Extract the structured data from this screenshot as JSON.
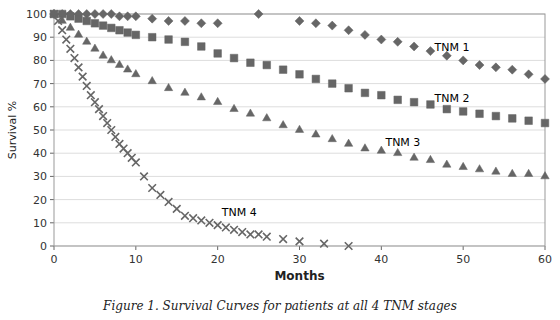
{
  "chart_data": {
    "type": "scatter",
    "title": "Figure 1. Survival Curves for patients at all 4 TNM stages",
    "xlabel": "Months",
    "ylabel": "Survival %",
    "xlim": [
      0,
      60
    ],
    "ylim": [
      0,
      100
    ],
    "xticks": [
      0,
      10,
      20,
      30,
      40,
      50,
      60
    ],
    "yticks": [
      0,
      10,
      20,
      30,
      40,
      50,
      60,
      70,
      80,
      90,
      100
    ],
    "grid": "y",
    "series": [
      {
        "marker": "diamond",
        "color": "#666666",
        "x": [
          0,
          1,
          2,
          3,
          4,
          5,
          6,
          7,
          8,
          9,
          10,
          12,
          14,
          16,
          18,
          20,
          25,
          30,
          32,
          34,
          36,
          38,
          40,
          42,
          44,
          46,
          48,
          50,
          52,
          54,
          56,
          58,
          60
        ],
        "values": [
          100,
          100,
          100,
          100,
          100,
          100,
          100,
          100,
          99,
          99,
          99,
          98,
          97,
          97,
          96,
          96,
          100,
          97,
          96,
          95,
          93,
          91,
          89,
          88,
          86,
          84,
          82,
          80,
          78,
          77,
          76,
          74,
          72
        ]
      },
      {
        "marker": "square",
        "color": "#666666",
        "x": [
          0,
          1,
          2,
          3,
          4,
          5,
          6,
          7,
          8,
          9,
          10,
          12,
          14,
          16,
          18,
          20,
          22,
          24,
          26,
          28,
          30,
          32,
          34,
          36,
          38,
          40,
          42,
          44,
          46,
          48,
          50,
          52,
          54,
          56,
          58,
          60
        ],
        "values": [
          100,
          100,
          99,
          98,
          97,
          96,
          95,
          94,
          93,
          92,
          91,
          90,
          89,
          88,
          86,
          83,
          81,
          79,
          78,
          76,
          74,
          72,
          70,
          68,
          66,
          65,
          63,
          62,
          61,
          59,
          58,
          57,
          56,
          55,
          54,
          53
        ]
      },
      {
        "marker": "triangle",
        "color": "#666666",
        "x": [
          0,
          1,
          2,
          3,
          4,
          5,
          6,
          7,
          8,
          9,
          10,
          12,
          14,
          16,
          18,
          20,
          22,
          24,
          26,
          28,
          30,
          32,
          34,
          36,
          38,
          40,
          42,
          44,
          46,
          48,
          50,
          52,
          54,
          56,
          58,
          60
        ],
        "values": [
          100,
          97,
          94,
          91,
          88,
          85,
          82,
          80,
          78,
          76,
          74,
          71,
          68,
          66,
          64,
          62,
          59,
          57,
          55,
          52,
          50,
          48,
          46,
          44,
          42,
          41,
          40,
          38,
          37,
          35,
          34,
          33,
          32,
          31,
          31,
          30
        ]
      },
      {
        "marker": "x",
        "color": "#666666",
        "x": [
          0,
          0.5,
          1,
          1.5,
          2,
          2.5,
          3,
          3.5,
          4,
          4.5,
          5,
          5.5,
          6,
          6.5,
          7,
          7.5,
          8,
          8.5,
          9,
          9.5,
          10,
          11,
          12,
          13,
          14,
          15,
          16,
          17,
          18,
          19,
          20,
          21,
          22,
          23,
          24,
          25,
          26,
          28,
          30,
          33,
          36
        ],
        "values": [
          100,
          97,
          93,
          89,
          85,
          81,
          77,
          73,
          69,
          65,
          62,
          59,
          56,
          53,
          50,
          47,
          44,
          42,
          40,
          38,
          36,
          30,
          25,
          22,
          19,
          16,
          13,
          12,
          11,
          10,
          9,
          8,
          7,
          6,
          5,
          5,
          4,
          3,
          2,
          1,
          0
        ]
      }
    ],
    "annotations": [
      {
        "text": "TNM 1",
        "x": 46.5,
        "y": 84
      },
      {
        "text": "TNM 2",
        "x": 46.5,
        "y": 62
      },
      {
        "text": "TNM 3",
        "x": 40.5,
        "y": 43
      },
      {
        "text": "TNM 4",
        "x": 20.5,
        "y": 13
      }
    ]
  }
}
